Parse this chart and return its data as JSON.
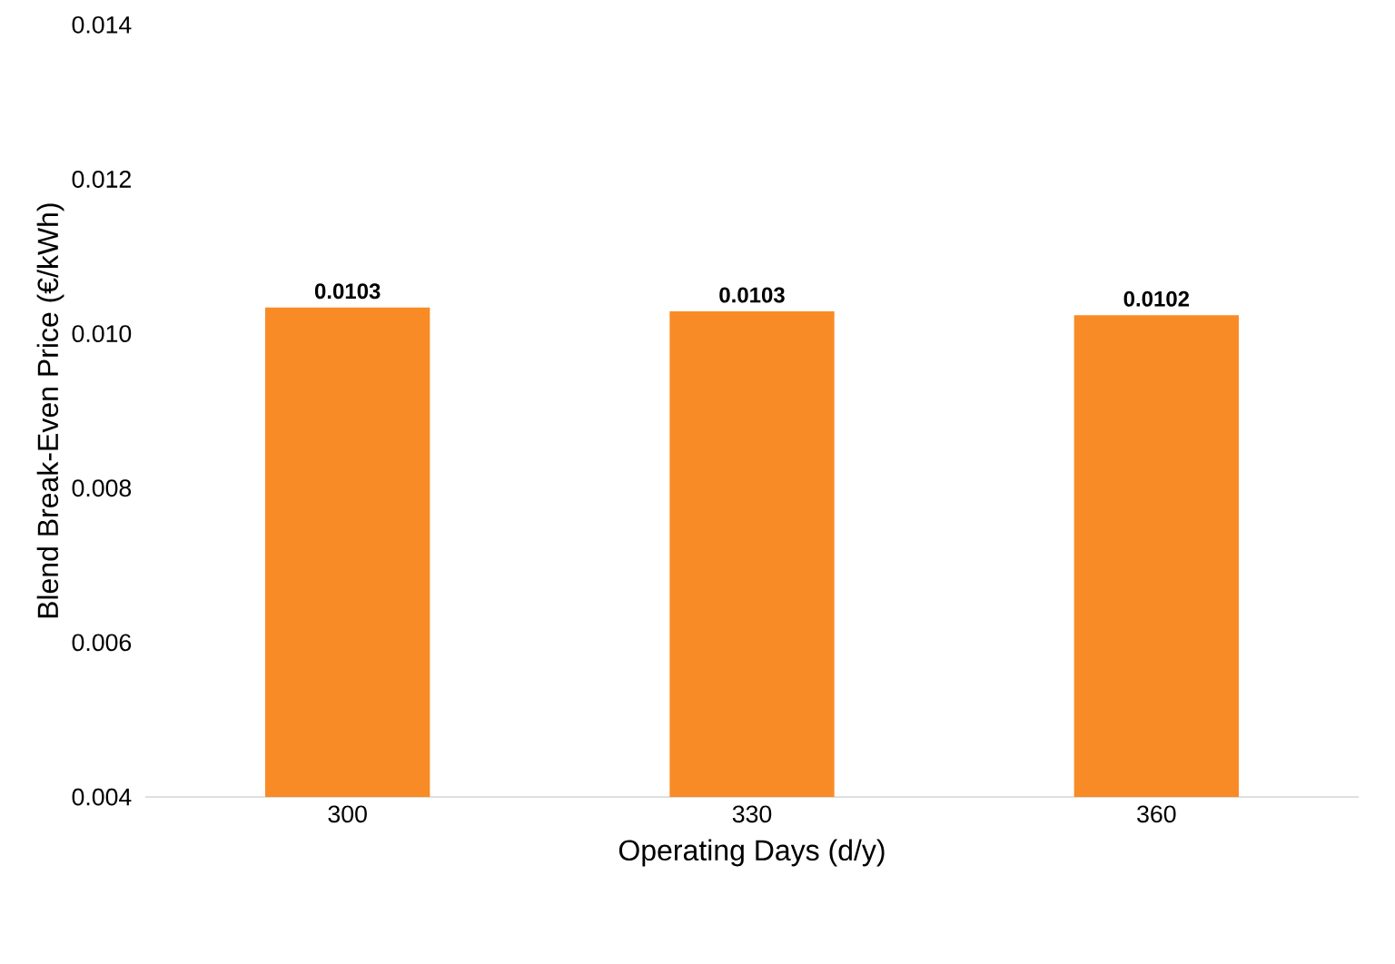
{
  "chart_data": {
    "type": "bar",
    "xlabel": "Operating Days (d/y)",
    "ylabel": "Blend Break-Even Price (€/kWh)",
    "categories": [
      "300",
      "330",
      "360"
    ],
    "values": [
      0.01034,
      0.01029,
      0.01024
    ],
    "value_labels": [
      "0.0103",
      "0.0103",
      "0.0102"
    ],
    "color": "#f98b26",
    "ylim": [
      0.004,
      0.014
    ],
    "yticks": [
      0.004,
      0.006,
      0.008,
      {
        "value": 0.01,
        "label": "0.010"
      },
      0.012,
      0.014
    ],
    "grid": false
  }
}
